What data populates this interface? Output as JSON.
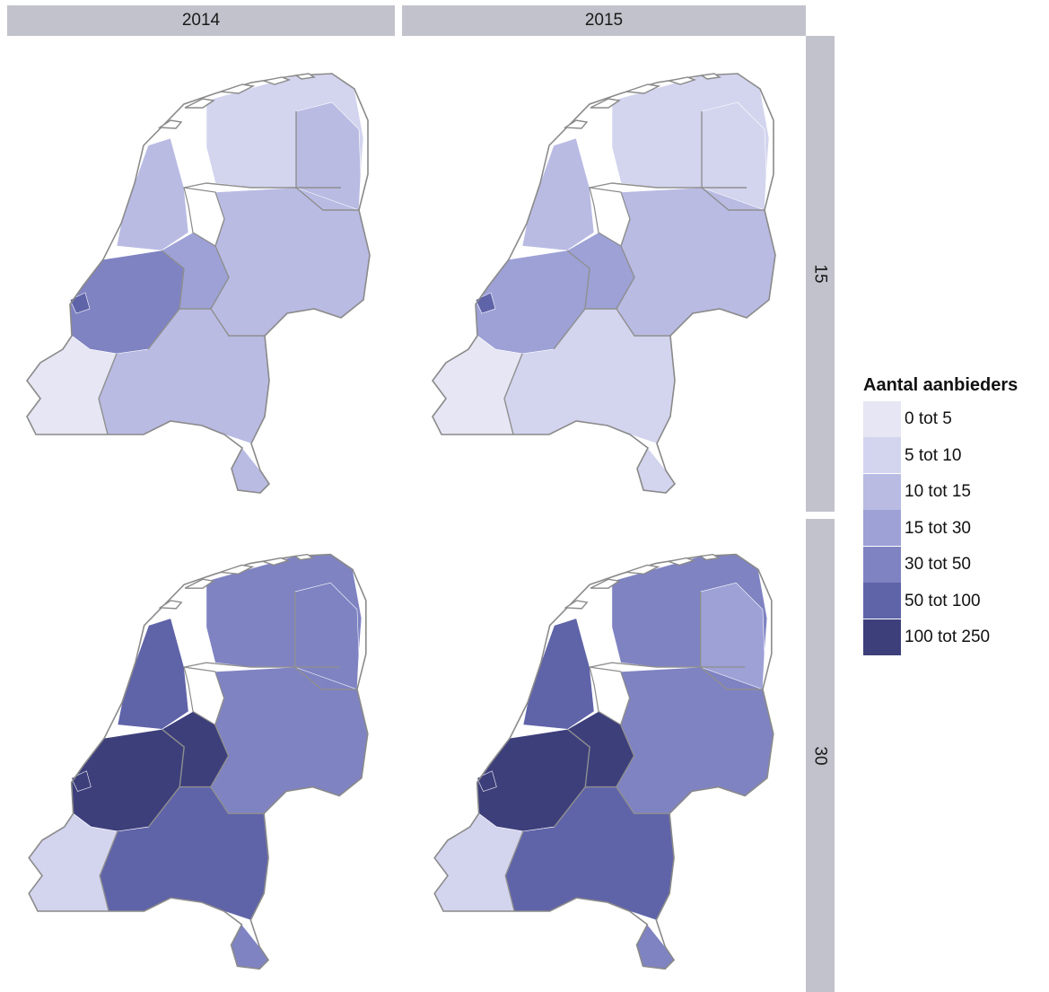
{
  "facets": {
    "columns": [
      "2014",
      "2015"
    ],
    "rows": [
      "15",
      "30"
    ]
  },
  "legend": {
    "title": "Aantal aanbieders",
    "classes": [
      {
        "label": "0 tot 5",
        "color": "#e6e6f4"
      },
      {
        "label": "5 tot 10",
        "color": "#d3d4ee"
      },
      {
        "label": "10 tot 15",
        "color": "#b9bbe3"
      },
      {
        "label": "15 tot 30",
        "color": "#9da1d6"
      },
      {
        "label": "30 tot 50",
        "color": "#7f83c2"
      },
      {
        "label": "50 tot 100",
        "color": "#5f63a8"
      },
      {
        "label": "100 tot 250",
        "color": "#3d3f7b"
      }
    ]
  },
  "panels": [
    {
      "year": "2014",
      "row": "15",
      "levels": {
        "north": 1,
        "northeast": 2,
        "noordholland": 2,
        "randstad": 4,
        "utrecht": 3,
        "east": 2,
        "south": 2,
        "zeeland": 0,
        "limburg": 2,
        "hotspot": 5
      }
    },
    {
      "year": "2015",
      "row": "15",
      "levels": {
        "north": 1,
        "northeast": 1,
        "noordholland": 2,
        "randstad": 3,
        "utrecht": 3,
        "east": 2,
        "south": 1,
        "zeeland": 0,
        "limburg": 1,
        "hotspot": 5
      }
    },
    {
      "year": "2014",
      "row": "30",
      "levels": {
        "north": 4,
        "northeast": 4,
        "noordholland": 5,
        "randstad": 6,
        "utrecht": 6,
        "east": 4,
        "south": 5,
        "zeeland": 1,
        "limburg": 4,
        "hotspot": 6
      }
    },
    {
      "year": "2015",
      "row": "30",
      "levels": {
        "north": 4,
        "northeast": 3,
        "noordholland": 5,
        "randstad": 6,
        "utrecht": 6,
        "east": 4,
        "south": 5,
        "zeeland": 1,
        "limburg": 4,
        "hotspot": 6
      }
    }
  ]
}
